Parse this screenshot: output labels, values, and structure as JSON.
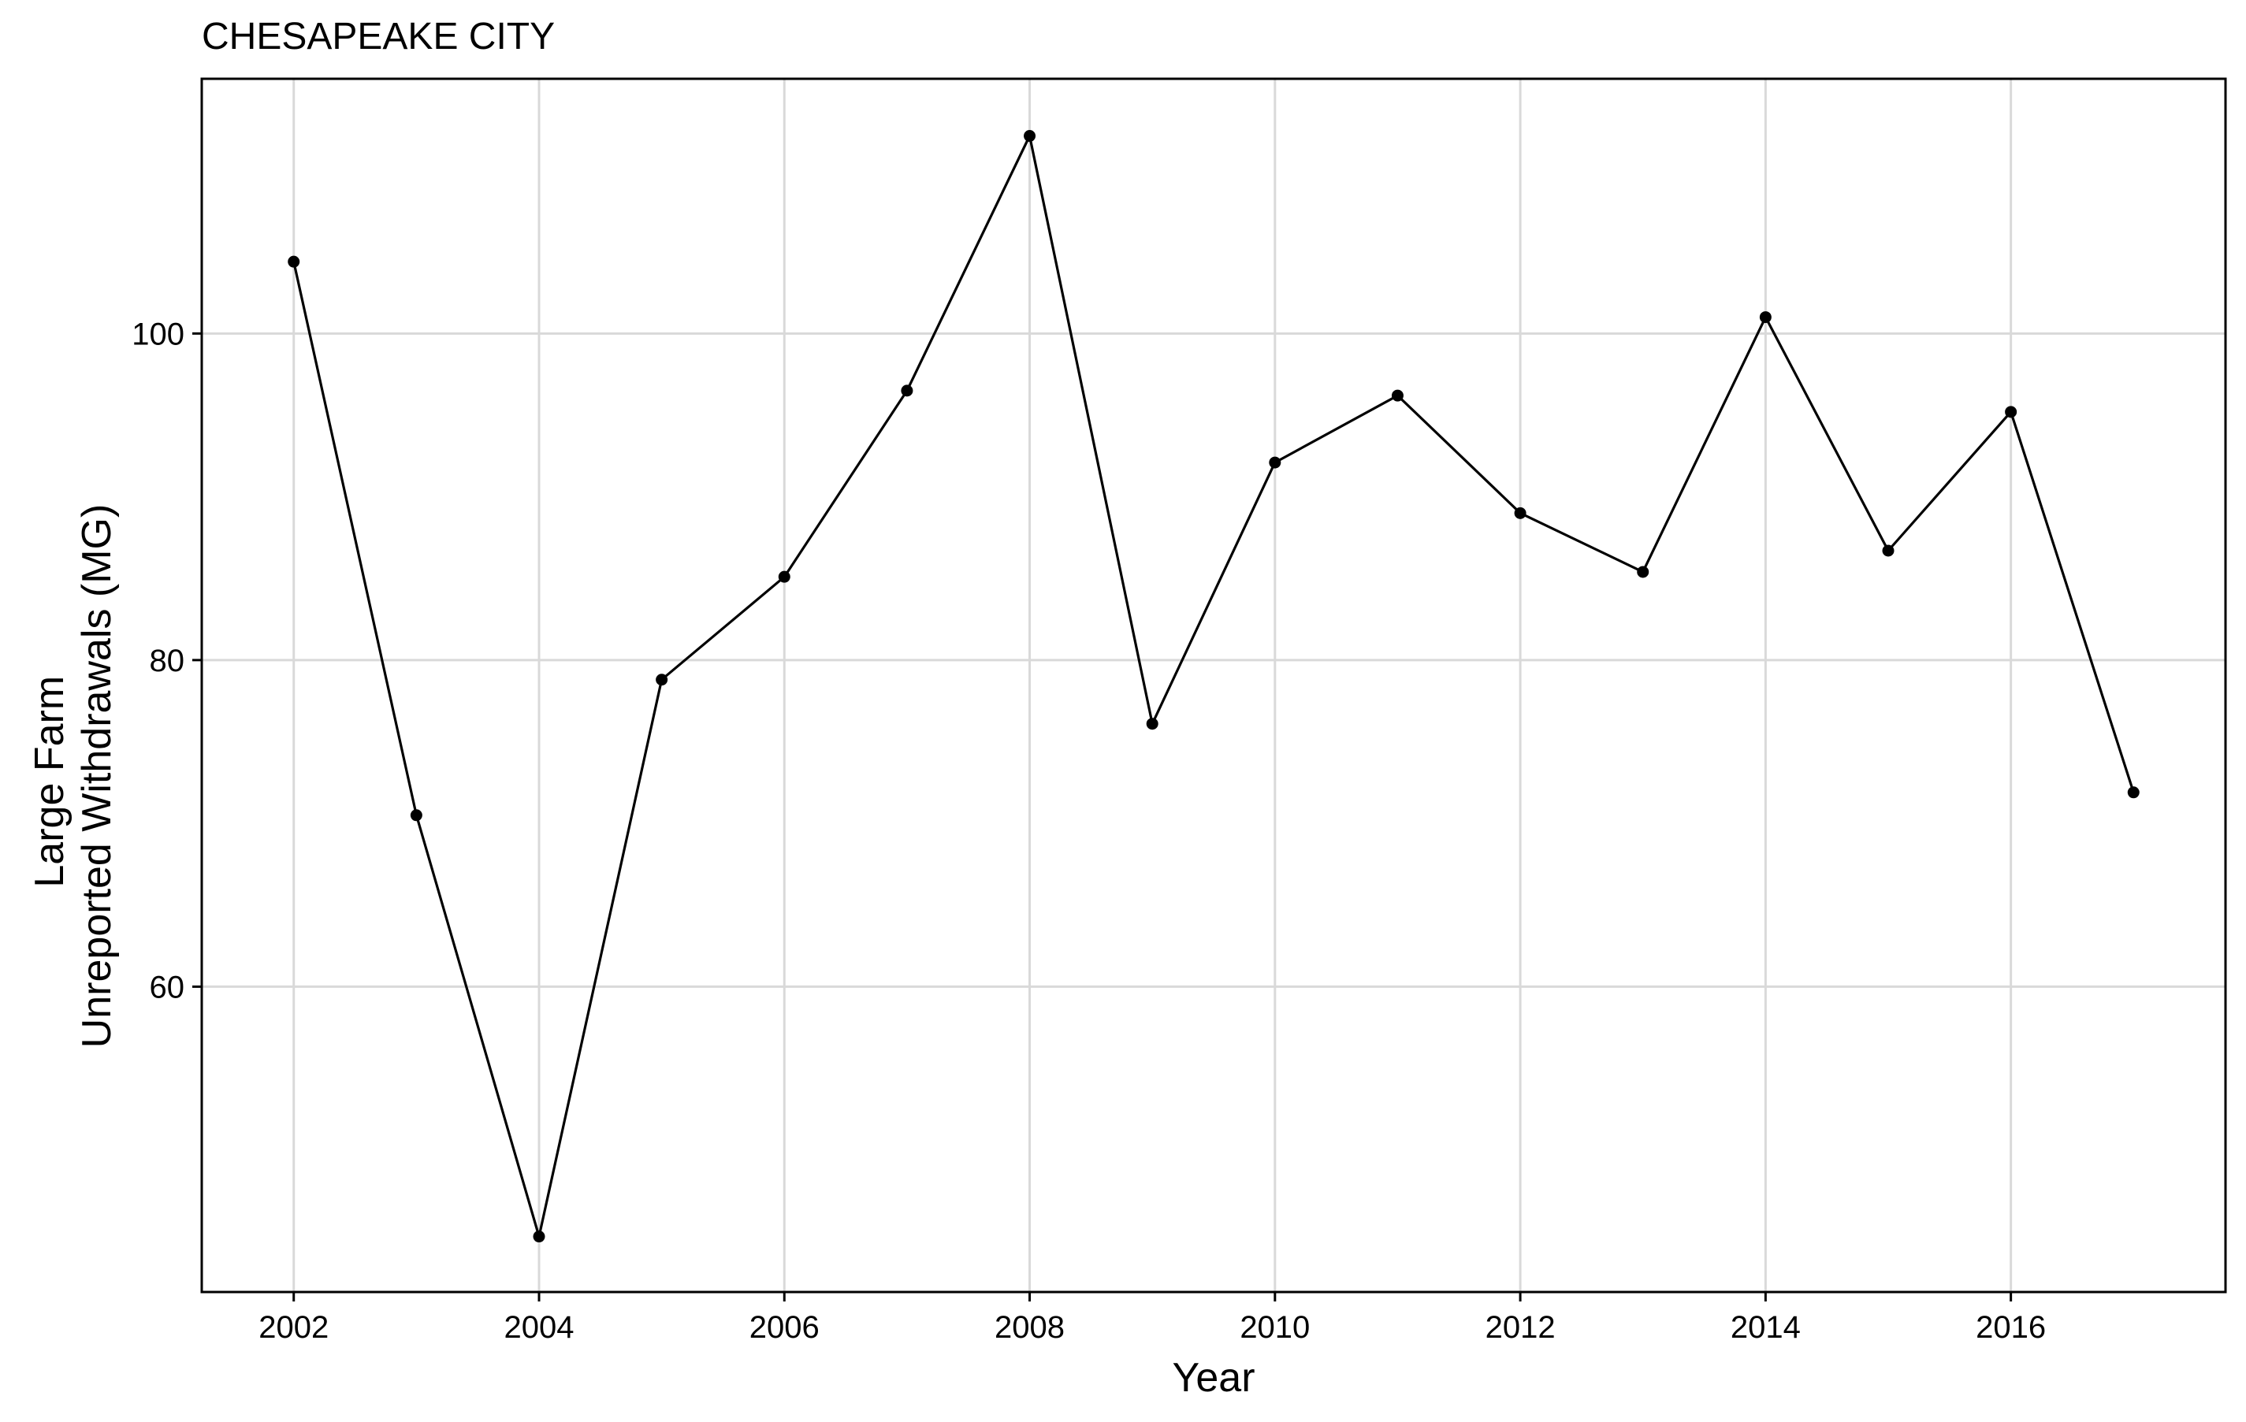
{
  "chart_data": {
    "type": "line",
    "title": "CHESAPEAKE CITY",
    "xlabel": "Year",
    "ylabel_lines": [
      "Large Farm",
      "Unreported Withdrawals (MG)"
    ],
    "x_ticks": [
      2002,
      2004,
      2006,
      2008,
      2010,
      2012,
      2014,
      2016
    ],
    "y_ticks": [
      60,
      80,
      100
    ],
    "xlim": [
      2001.25,
      2017.75
    ],
    "ylim": [
      41.3,
      115.6
    ],
    "grid": true,
    "legend": "none",
    "series": [
      {
        "x": [
          2002,
          2003,
          2004,
          2005,
          2006,
          2007,
          2008,
          2009,
          2010,
          2011,
          2012,
          2013,
          2014,
          2015,
          2016,
          2017
        ],
        "values": [
          104.4,
          70.5,
          44.7,
          78.8,
          85.1,
          96.5,
          112.1,
          76.1,
          92.1,
          96.2,
          89.0,
          85.4,
          101.0,
          86.7,
          95.2,
          71.9
        ]
      }
    ],
    "colors": {
      "line": "#000000",
      "point": "#000000",
      "grid": "#d9d9d9",
      "background": "#ffffff"
    }
  }
}
